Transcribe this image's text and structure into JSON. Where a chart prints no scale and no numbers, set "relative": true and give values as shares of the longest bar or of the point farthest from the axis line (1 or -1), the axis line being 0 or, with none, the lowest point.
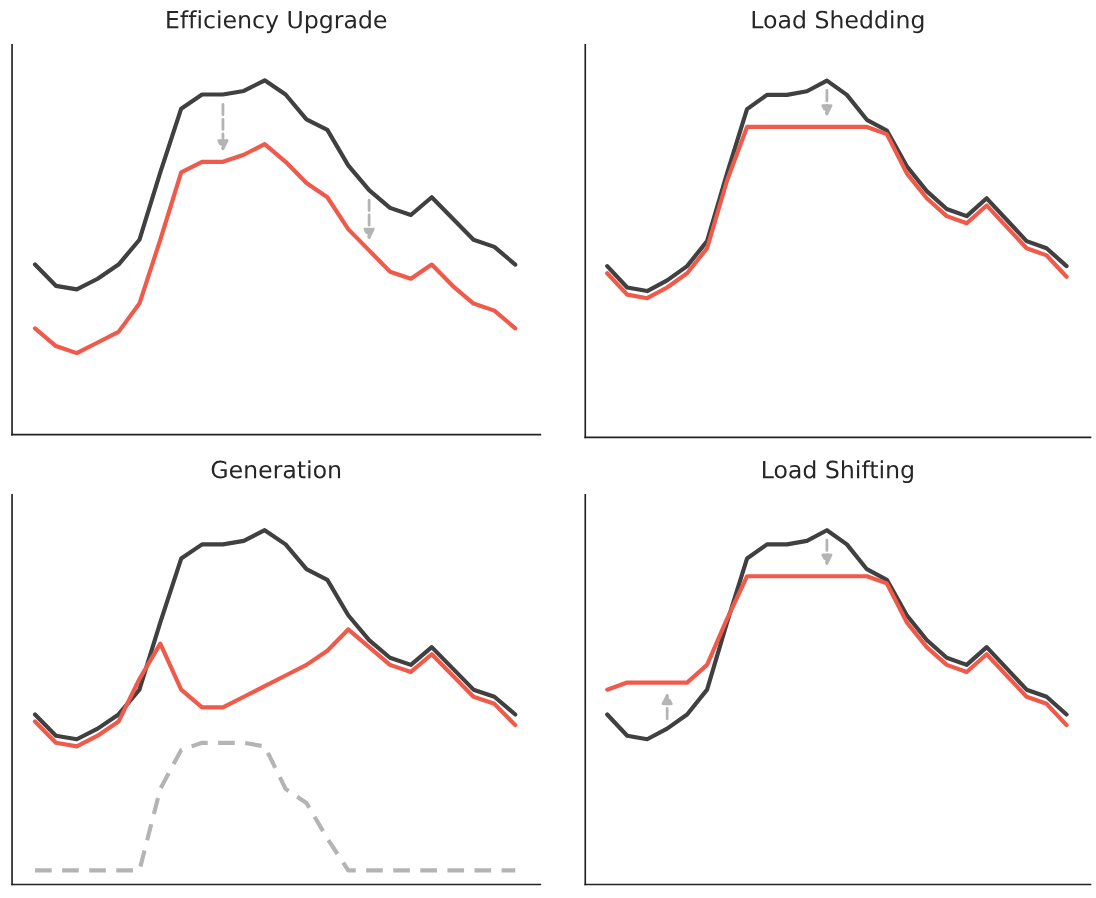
{
  "chart_data": [
    {
      "type": "line",
      "title": "Efficiency Upgrade",
      "relative": true,
      "categories": [
        null,
        null,
        null,
        null,
        null,
        null,
        null,
        null,
        null,
        null,
        null,
        null,
        null,
        null,
        null,
        null,
        null,
        null,
        null,
        null,
        null,
        null,
        null,
        null
      ],
      "series": [
        {
          "color": "#404040",
          "values": [
            0.48,
            0.42,
            0.41,
            0.44,
            0.48,
            0.55,
            0.74,
            0.92,
            0.96,
            0.96,
            0.97,
            1.0,
            0.96,
            0.89,
            0.86,
            0.76,
            0.69,
            0.64,
            0.62,
            0.67,
            0.61,
            0.55,
            0.53,
            0.48
          ]
        },
        {
          "color": "#f05a4a",
          "values": [
            0.3,
            0.25,
            0.23,
            0.26,
            0.29,
            0.37,
            0.55,
            0.74,
            0.77,
            0.77,
            0.79,
            0.82,
            0.77,
            0.71,
            0.67,
            0.58,
            0.52,
            0.46,
            0.44,
            0.48,
            0.42,
            0.37,
            0.35,
            0.3
          ]
        }
      ]
    },
    {
      "type": "line",
      "title": "Load Shedding",
      "relative": true,
      "categories": [
        null,
        null,
        null,
        null,
        null,
        null,
        null,
        null,
        null,
        null,
        null,
        null,
        null,
        null,
        null,
        null,
        null,
        null,
        null,
        null,
        null,
        null,
        null,
        null
      ],
      "series": [
        {
          "color": "#404040",
          "values": [
            0.48,
            0.42,
            0.41,
            0.44,
            0.48,
            0.55,
            0.74,
            0.92,
            0.96,
            0.96,
            0.97,
            1.0,
            0.96,
            0.89,
            0.86,
            0.76,
            0.69,
            0.64,
            0.62,
            0.67,
            0.61,
            0.55,
            0.53,
            0.48
          ]
        },
        {
          "color": "#f05a4a",
          "values": [
            0.46,
            0.4,
            0.39,
            0.42,
            0.46,
            0.53,
            0.72,
            0.87,
            0.87,
            0.87,
            0.87,
            0.87,
            0.87,
            0.87,
            0.85,
            0.74,
            0.67,
            0.62,
            0.6,
            0.65,
            0.59,
            0.53,
            0.51,
            0.45
          ]
        }
      ]
    },
    {
      "type": "line",
      "title": "Generation",
      "relative": true,
      "categories": [
        null,
        null,
        null,
        null,
        null,
        null,
        null,
        null,
        null,
        null,
        null,
        null,
        null,
        null,
        null,
        null,
        null,
        null,
        null,
        null,
        null,
        null,
        null,
        null
      ],
      "series": [
        {
          "color": "#404040",
          "values": [
            0.48,
            0.42,
            0.41,
            0.44,
            0.48,
            0.55,
            0.74,
            0.92,
            0.96,
            0.96,
            0.97,
            1.0,
            0.96,
            0.89,
            0.86,
            0.76,
            0.69,
            0.64,
            0.62,
            0.67,
            0.61,
            0.55,
            0.53,
            0.48
          ]
        },
        {
          "color": "#f05a4a",
          "values": [
            0.46,
            0.4,
            0.39,
            0.42,
            0.46,
            0.58,
            0.68,
            0.55,
            0.5,
            0.5,
            0.53,
            0.56,
            0.59,
            0.62,
            0.66,
            0.72,
            0.67,
            0.62,
            0.6,
            0.65,
            0.59,
            0.53,
            0.51,
            0.45
          ]
        },
        {
          "color": "#b4b4b4",
          "line_style": "dashed",
          "values": [
            0.04,
            0.04,
            0.04,
            0.04,
            0.04,
            0.04,
            0.27,
            0.38,
            0.4,
            0.4,
            0.4,
            0.39,
            0.27,
            0.23,
            0.13,
            0.04,
            0.04,
            0.04,
            0.04,
            0.04,
            0.04,
            0.04,
            0.04,
            0.04
          ]
        }
      ]
    },
    {
      "type": "line",
      "title": "Load Shifting",
      "relative": true,
      "categories": [
        null,
        null,
        null,
        null,
        null,
        null,
        null,
        null,
        null,
        null,
        null,
        null,
        null,
        null,
        null,
        null,
        null,
        null,
        null,
        null,
        null,
        null,
        null,
        null
      ],
      "series": [
        {
          "color": "#404040",
          "values": [
            0.48,
            0.42,
            0.41,
            0.44,
            0.48,
            0.55,
            0.74,
            0.92,
            0.96,
            0.96,
            0.97,
            1.0,
            0.96,
            0.89,
            0.86,
            0.76,
            0.69,
            0.64,
            0.62,
            0.67,
            0.61,
            0.55,
            0.53,
            0.48
          ]
        },
        {
          "color": "#f05a4a",
          "values": [
            0.55,
            0.57,
            0.57,
            0.57,
            0.57,
            0.62,
            0.75,
            0.87,
            0.87,
            0.87,
            0.87,
            0.87,
            0.87,
            0.87,
            0.85,
            0.74,
            0.67,
            0.62,
            0.6,
            0.65,
            0.59,
            0.53,
            0.51,
            0.45
          ]
        }
      ]
    }
  ]
}
